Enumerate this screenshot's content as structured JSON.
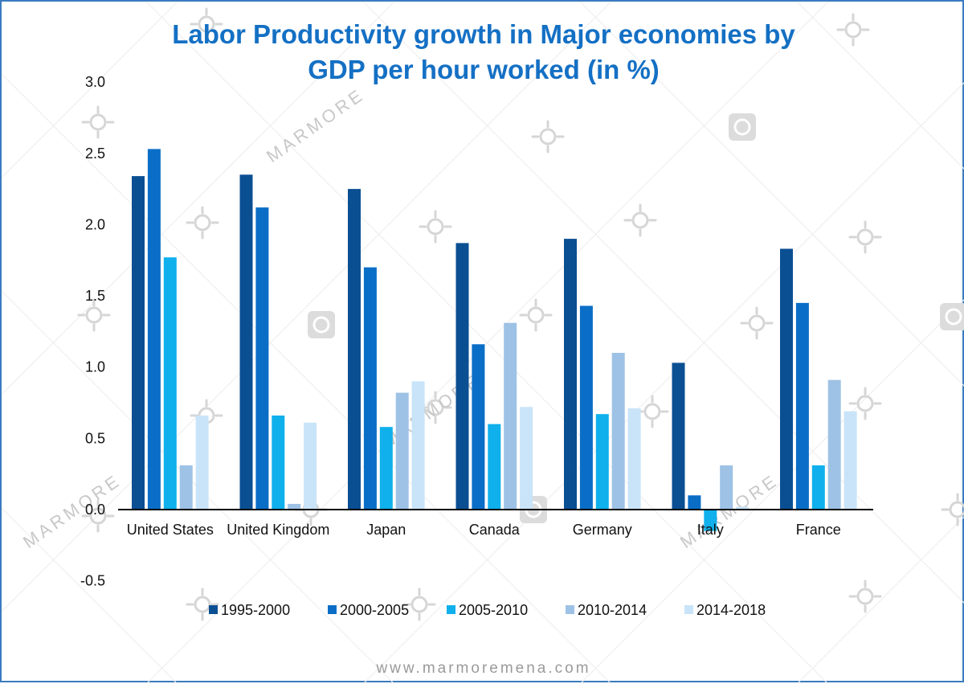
{
  "chart_data": {
    "type": "bar",
    "title_lines": [
      "Labor Productivity growth in Major economies by",
      "GDP per hour worked (in %)"
    ],
    "categories": [
      "United States",
      "United Kingdom",
      "Japan",
      "Canada",
      "Germany",
      "Italy",
      "France"
    ],
    "series": [
      {
        "name": "1995-2000",
        "color": "#0b4f93",
        "values": [
          2.34,
          2.35,
          2.25,
          1.87,
          1.9,
          1.03,
          1.83
        ]
      },
      {
        "name": "2000-2005",
        "color": "#0a6ec7",
        "values": [
          2.53,
          2.12,
          1.7,
          1.16,
          1.43,
          0.1,
          1.45
        ]
      },
      {
        "name": "2005-2010",
        "color": "#0fb0ec",
        "values": [
          1.77,
          0.66,
          0.58,
          0.6,
          0.67,
          -0.15,
          0.31
        ]
      },
      {
        "name": "2010-2014",
        "color": "#9dc2e5",
        "values": [
          0.31,
          0.04,
          0.82,
          1.31,
          1.1,
          0.31,
          0.91
        ]
      },
      {
        "name": "2014-2018",
        "color": "#c9e4f8",
        "values": [
          0.66,
          0.61,
          0.9,
          0.72,
          0.71,
          0.02,
          0.69
        ]
      }
    ],
    "yticks": [
      "3.0",
      "2.5",
      "2.0",
      "1.5",
      "1.0",
      "0.5",
      "0.0",
      "-0.5"
    ],
    "ylim": [
      -0.5,
      3.0
    ],
    "xlabel": "",
    "ylabel": "",
    "legend_position": "bottom"
  },
  "watermark": {
    "brand": "MARMORE"
  },
  "footer": {
    "url": "www.marmoremena.com"
  }
}
